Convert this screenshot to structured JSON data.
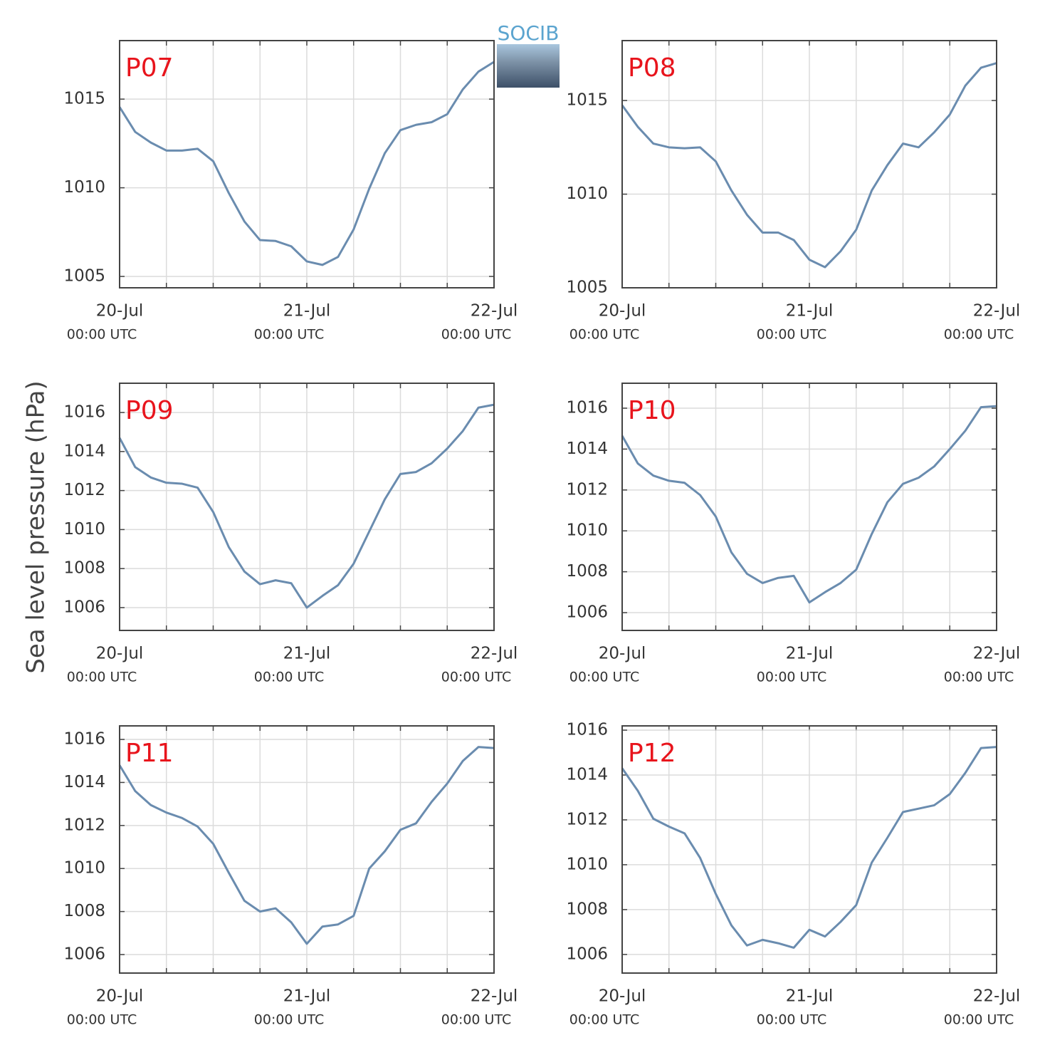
{
  "logo": "SOCIB",
  "ylabel": "Sea level pressure (hPa)",
  "chart_data": [
    {
      "type": "line",
      "title": "P07",
      "x": [
        "20-Jul 00:00",
        "20-Jul 02:00",
        "20-Jul 04:00",
        "20-Jul 06:00",
        "20-Jul 08:00",
        "20-Jul 10:00",
        "20-Jul 12:00",
        "20-Jul 14:00",
        "20-Jul 16:00",
        "20-Jul 18:00",
        "20-Jul 20:00",
        "20-Jul 22:00",
        "21-Jul 00:00",
        "21-Jul 02:00",
        "21-Jul 04:00",
        "21-Jul 06:00",
        "21-Jul 08:00",
        "21-Jul 10:00",
        "21-Jul 12:00",
        "21-Jul 14:00",
        "21-Jul 16:00",
        "21-Jul 18:00",
        "21-Jul 20:00",
        "21-Jul 22:00",
        "22-Jul 00:00"
      ],
      "series": [
        {
          "color": "#6a8caf",
          "values": [
            1014.55,
            1013.15,
            1012.55,
            1012.1,
            1012.1,
            1012.2,
            1011.5,
            1009.7,
            1008.1,
            1007.05,
            1007.0,
            1006.7,
            1005.85,
            1005.65,
            1006.1,
            1007.65,
            1009.95,
            1011.95,
            1013.25,
            1013.55,
            1013.7,
            1014.15,
            1015.55,
            1016.55,
            1017.1
          ]
        }
      ],
      "xlim": [
        "20-Jul 00:00",
        "22-Jul 00:00"
      ],
      "xticks": [
        {
          "value": "20-Jul 00:00",
          "label": [
            "20-Jul",
            "00:00 UTC"
          ]
        },
        {
          "value": "21-Jul 00:00",
          "label": [
            "21-Jul",
            "00:00 UTC"
          ]
        },
        {
          "value": "22-Jul 00:00",
          "label": [
            "22-Jul",
            "00:00 UTC"
          ]
        }
      ],
      "minor_xticks": [
        "20-Jul 06:00",
        "20-Jul 12:00",
        "20-Jul 18:00",
        "21-Jul 06:00",
        "21-Jul 12:00",
        "21-Jul 18:00"
      ],
      "ylim": [
        1004.36,
        1018.3
      ],
      "yticks": [
        1005,
        1010,
        1015
      ],
      "grid": true
    },
    {
      "type": "line",
      "title": "P08",
      "x": [
        "20-Jul 00:00",
        "20-Jul 02:00",
        "20-Jul 04:00",
        "20-Jul 06:00",
        "20-Jul 08:00",
        "20-Jul 10:00",
        "20-Jul 12:00",
        "20-Jul 14:00",
        "20-Jul 16:00",
        "20-Jul 18:00",
        "20-Jul 20:00",
        "20-Jul 22:00",
        "21-Jul 00:00",
        "21-Jul 02:00",
        "21-Jul 04:00",
        "21-Jul 06:00",
        "21-Jul 08:00",
        "21-Jul 10:00",
        "21-Jul 12:00",
        "21-Jul 14:00",
        "21-Jul 16:00",
        "21-Jul 18:00",
        "21-Jul 20:00",
        "21-Jul 22:00",
        "22-Jul 00:00"
      ],
      "series": [
        {
          "color": "#6a8caf",
          "values": [
            1014.75,
            1013.6,
            1012.7,
            1012.5,
            1012.45,
            1012.5,
            1011.75,
            1010.2,
            1008.9,
            1007.95,
            1007.95,
            1007.55,
            1006.5,
            1006.1,
            1006.95,
            1008.1,
            1010.2,
            1011.55,
            1012.7,
            1012.5,
            1013.3,
            1014.25,
            1015.8,
            1016.75,
            1017.0
          ]
        }
      ],
      "xlim": [
        "20-Jul 00:00",
        "22-Jul 00:00"
      ],
      "xticks": [
        {
          "value": "20-Jul 00:00",
          "label": [
            "20-Jul",
            "00:00 UTC"
          ]
        },
        {
          "value": "21-Jul 00:00",
          "label": [
            "21-Jul",
            "00:00 UTC"
          ]
        },
        {
          "value": "22-Jul 00:00",
          "label": [
            "22-Jul",
            "00:00 UTC"
          ]
        }
      ],
      "minor_xticks": [
        "20-Jul 06:00",
        "20-Jul 12:00",
        "20-Jul 18:00",
        "21-Jul 06:00",
        "21-Jul 12:00",
        "21-Jul 18:00"
      ],
      "ylim": [
        1005,
        1018.2
      ],
      "yticks": [
        1005,
        1010,
        1015
      ],
      "grid": true
    },
    {
      "type": "line",
      "title": "P09",
      "x": [
        "20-Jul 00:00",
        "20-Jul 02:00",
        "20-Jul 04:00",
        "20-Jul 06:00",
        "20-Jul 08:00",
        "20-Jul 10:00",
        "20-Jul 12:00",
        "20-Jul 14:00",
        "20-Jul 16:00",
        "20-Jul 18:00",
        "20-Jul 20:00",
        "20-Jul 22:00",
        "21-Jul 00:00",
        "21-Jul 02:00",
        "21-Jul 04:00",
        "21-Jul 06:00",
        "21-Jul 08:00",
        "21-Jul 10:00",
        "21-Jul 12:00",
        "21-Jul 14:00",
        "21-Jul 16:00",
        "21-Jul 18:00",
        "21-Jul 20:00",
        "21-Jul 22:00",
        "22-Jul 00:00"
      ],
      "series": [
        {
          "color": "#6a8caf",
          "values": [
            1014.7,
            1013.2,
            1012.67,
            1012.4,
            1012.35,
            1012.15,
            1010.9,
            1009.1,
            1007.85,
            1007.2,
            1007.4,
            1007.25,
            1006.0,
            1006.6,
            1007.15,
            1008.25,
            1009.9,
            1011.55,
            1012.85,
            1012.95,
            1013.4,
            1014.15,
            1015.05,
            1016.25,
            1016.4
          ]
        }
      ],
      "xlim": [
        "20-Jul 00:00",
        "22-Jul 00:00"
      ],
      "xticks": [
        {
          "value": "20-Jul 00:00",
          "label": [
            "20-Jul",
            "00:00 UTC"
          ]
        },
        {
          "value": "21-Jul 00:00",
          "label": [
            "21-Jul",
            "00:00 UTC"
          ]
        },
        {
          "value": "22-Jul 00:00",
          "label": [
            "22-Jul",
            "00:00 UTC"
          ]
        }
      ],
      "minor_xticks": [
        "20-Jul 06:00",
        "20-Jul 12:00",
        "20-Jul 18:00",
        "21-Jul 06:00",
        "21-Jul 12:00",
        "21-Jul 18:00"
      ],
      "ylim": [
        1004.83,
        1017.5
      ],
      "yticks": [
        1006,
        1008,
        1010,
        1012,
        1014,
        1016
      ],
      "grid": true
    },
    {
      "type": "line",
      "title": "P10",
      "x": [
        "20-Jul 00:00",
        "20-Jul 02:00",
        "20-Jul 04:00",
        "20-Jul 06:00",
        "20-Jul 08:00",
        "20-Jul 10:00",
        "20-Jul 12:00",
        "20-Jul 14:00",
        "20-Jul 16:00",
        "20-Jul 18:00",
        "20-Jul 20:00",
        "20-Jul 22:00",
        "21-Jul 00:00",
        "21-Jul 02:00",
        "21-Jul 04:00",
        "21-Jul 06:00",
        "21-Jul 08:00",
        "21-Jul 10:00",
        "21-Jul 12:00",
        "21-Jul 14:00",
        "21-Jul 16:00",
        "21-Jul 18:00",
        "21-Jul 20:00",
        "21-Jul 22:00",
        "22-Jul 00:00"
      ],
      "series": [
        {
          "color": "#6a8caf",
          "values": [
            1014.65,
            1013.3,
            1012.7,
            1012.45,
            1012.35,
            1011.75,
            1010.7,
            1008.95,
            1007.9,
            1007.45,
            1007.7,
            1007.8,
            1006.5,
            1007.0,
            1007.45,
            1008.1,
            1009.85,
            1011.4,
            1012.3,
            1012.6,
            1013.15,
            1014.0,
            1014.9,
            1016.05,
            1016.1
          ]
        }
      ],
      "xlim": [
        "20-Jul 00:00",
        "22-Jul 00:00"
      ],
      "xticks": [
        {
          "value": "20-Jul 00:00",
          "label": [
            "20-Jul",
            "00:00 UTC"
          ]
        },
        {
          "value": "21-Jul 00:00",
          "label": [
            "21-Jul",
            "00:00 UTC"
          ]
        },
        {
          "value": "22-Jul 00:00",
          "label": [
            "22-Jul",
            "00:00 UTC"
          ]
        }
      ],
      "minor_xticks": [
        "20-Jul 06:00",
        "20-Jul 12:00",
        "20-Jul 18:00",
        "21-Jul 06:00",
        "21-Jul 12:00",
        "21-Jul 18:00"
      ],
      "ylim": [
        1005.13,
        1017.22
      ],
      "yticks": [
        1006,
        1008,
        1010,
        1012,
        1014,
        1016
      ],
      "grid": true
    },
    {
      "type": "line",
      "title": "P11",
      "x": [
        "20-Jul 00:00",
        "20-Jul 02:00",
        "20-Jul 04:00",
        "20-Jul 06:00",
        "20-Jul 08:00",
        "20-Jul 10:00",
        "20-Jul 12:00",
        "20-Jul 14:00",
        "20-Jul 16:00",
        "20-Jul 18:00",
        "20-Jul 20:00",
        "20-Jul 22:00",
        "21-Jul 00:00",
        "21-Jul 02:00",
        "21-Jul 04:00",
        "21-Jul 06:00",
        "21-Jul 08:00",
        "21-Jul 10:00",
        "21-Jul 12:00",
        "21-Jul 14:00",
        "21-Jul 16:00",
        "21-Jul 18:00",
        "21-Jul 20:00",
        "21-Jul 22:00",
        "22-Jul 00:00"
      ],
      "series": [
        {
          "color": "#6a8caf",
          "values": [
            1014.8,
            1013.6,
            1012.95,
            1012.6,
            1012.35,
            1011.95,
            1011.15,
            1009.8,
            1008.5,
            1008.0,
            1008.15,
            1007.5,
            1006.5,
            1007.3,
            1007.4,
            1007.8,
            1010.0,
            1010.8,
            1011.8,
            1012.1,
            1013.1,
            1013.95,
            1015.0,
            1015.65,
            1015.6
          ]
        }
      ],
      "xlim": [
        "20-Jul 00:00",
        "22-Jul 00:00"
      ],
      "xticks": [
        {
          "value": "20-Jul 00:00",
          "label": [
            "20-Jul",
            "00:00 UTC"
          ]
        },
        {
          "value": "21-Jul 00:00",
          "label": [
            "21-Jul",
            "00:00 UTC"
          ]
        },
        {
          "value": "22-Jul 00:00",
          "label": [
            "22-Jul",
            "00:00 UTC"
          ]
        }
      ],
      "minor_xticks": [
        "20-Jul 06:00",
        "20-Jul 12:00",
        "20-Jul 18:00",
        "21-Jul 06:00",
        "21-Jul 12:00",
        "21-Jul 18:00"
      ],
      "ylim": [
        1005.14,
        1016.63
      ],
      "yticks": [
        1006,
        1008,
        1010,
        1012,
        1014,
        1016
      ],
      "grid": true
    },
    {
      "type": "line",
      "title": "P12",
      "x": [
        "20-Jul 00:00",
        "20-Jul 02:00",
        "20-Jul 04:00",
        "20-Jul 06:00",
        "20-Jul 08:00",
        "20-Jul 10:00",
        "20-Jul 12:00",
        "20-Jul 14:00",
        "20-Jul 16:00",
        "20-Jul 18:00",
        "20-Jul 20:00",
        "20-Jul 22:00",
        "21-Jul 00:00",
        "21-Jul 02:00",
        "21-Jul 04:00",
        "21-Jul 06:00",
        "21-Jul 08:00",
        "21-Jul 10:00",
        "21-Jul 12:00",
        "21-Jul 14:00",
        "21-Jul 16:00",
        "21-Jul 18:00",
        "21-Jul 20:00",
        "21-Jul 22:00",
        "22-Jul 00:00"
      ],
      "series": [
        {
          "color": "#6a8caf",
          "values": [
            1014.3,
            1013.3,
            1012.05,
            1011.7,
            1011.4,
            1010.3,
            1008.7,
            1007.3,
            1006.4,
            1006.65,
            1006.5,
            1006.3,
            1007.1,
            1006.8,
            1007.45,
            1008.2,
            1010.1,
            1011.2,
            1012.35,
            1012.5,
            1012.65,
            1013.15,
            1014.1,
            1015.2,
            1015.25
          ]
        }
      ],
      "xlim": [
        "20-Jul 00:00",
        "22-Jul 00:00"
      ],
      "xticks": [
        {
          "value": "20-Jul 00:00",
          "label": [
            "20-Jul",
            "00:00 UTC"
          ]
        },
        {
          "value": "21-Jul 00:00",
          "label": [
            "21-Jul",
            "00:00 UTC"
          ]
        },
        {
          "value": "22-Jul 00:00",
          "label": [
            "22-Jul",
            "00:00 UTC"
          ]
        }
      ],
      "minor_xticks": [
        "20-Jul 06:00",
        "20-Jul 12:00",
        "20-Jul 18:00",
        "21-Jul 06:00",
        "21-Jul 12:00",
        "21-Jul 18:00"
      ],
      "ylim": [
        1005.17,
        1016.19
      ],
      "yticks": [
        1006,
        1008,
        1010,
        1012,
        1014,
        1016
      ],
      "grid": true
    }
  ]
}
